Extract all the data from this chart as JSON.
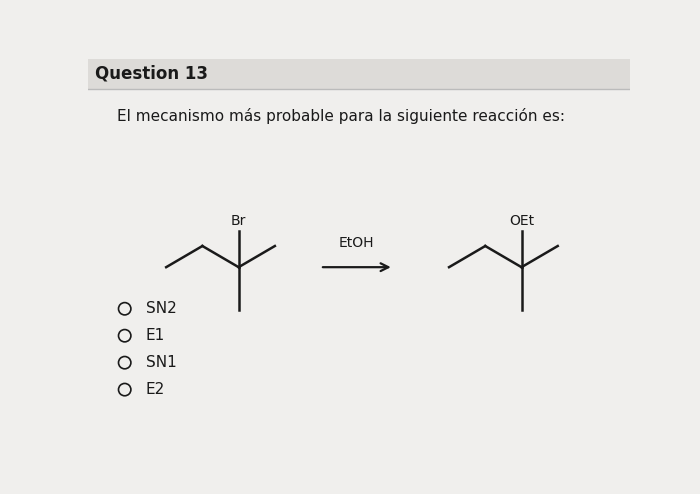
{
  "title": "Question 13",
  "subtitle": "El mecanismo más probable para la siguiente reacción es:",
  "reagent": "EtOH",
  "reagent_label": "EtOH",
  "options": [
    "SN2",
    "E1",
    "SN1",
    "E2"
  ],
  "bg_color": "#f0efed",
  "header_bg": "#dddbd8",
  "separator_color": "#bbbbbb",
  "line_color": "#1a1a1a",
  "text_color": "#1a1a1a",
  "title_fontsize": 12,
  "subtitle_fontsize": 11,
  "option_fontsize": 11,
  "label_fontsize": 10,
  "reagent_fontsize": 10
}
